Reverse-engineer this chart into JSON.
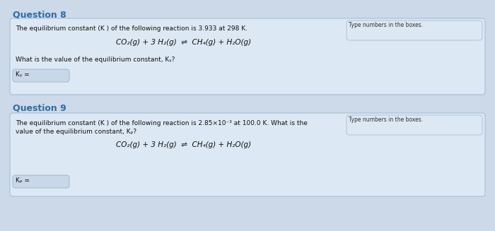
{
  "bg_color": "#ccd9e8",
  "box_color": "#dce8f3",
  "box_border_color": "#a8bfd4",
  "title_color": "#2e6da4",
  "text_color": "#111111",
  "sidebar_bg": "#dce8f3",
  "sidebar_border": "#a8bfd4",
  "answer_box_bg": "#c8d8e8",
  "answer_box_border": "#a0b8cc",
  "q8_title": "Question 8",
  "q8_body": "The equilibrium constant (K ) of the following reaction is 3.933 at 298 K.",
  "q8_reaction": "CO₂(g) + 3 H₂(g)  ⇌  CH₄(g) + H₂O(g)",
  "q8_question": "What is the value of the equilibrium constant, Kᵧ?",
  "q8_answer_label": "Kᵧ =",
  "q8_sidebar": "Type numbers in the boxes.",
  "q9_title": "Question 9",
  "q9_body1": "The equilibrium constant (K ) of the following reaction is 2.85×10⁻³ at 100.0 K. What is the",
  "q9_body2": "value of the equilibrium constant, Kᵨ?",
  "q9_reaction": "CO₂(g) + 3 H₂(g)  ⇌  CH₄(g) + H₂O(g)",
  "q9_answer_label": "Kᵨ =",
  "q9_sidebar": "Type numbers in the boxes."
}
